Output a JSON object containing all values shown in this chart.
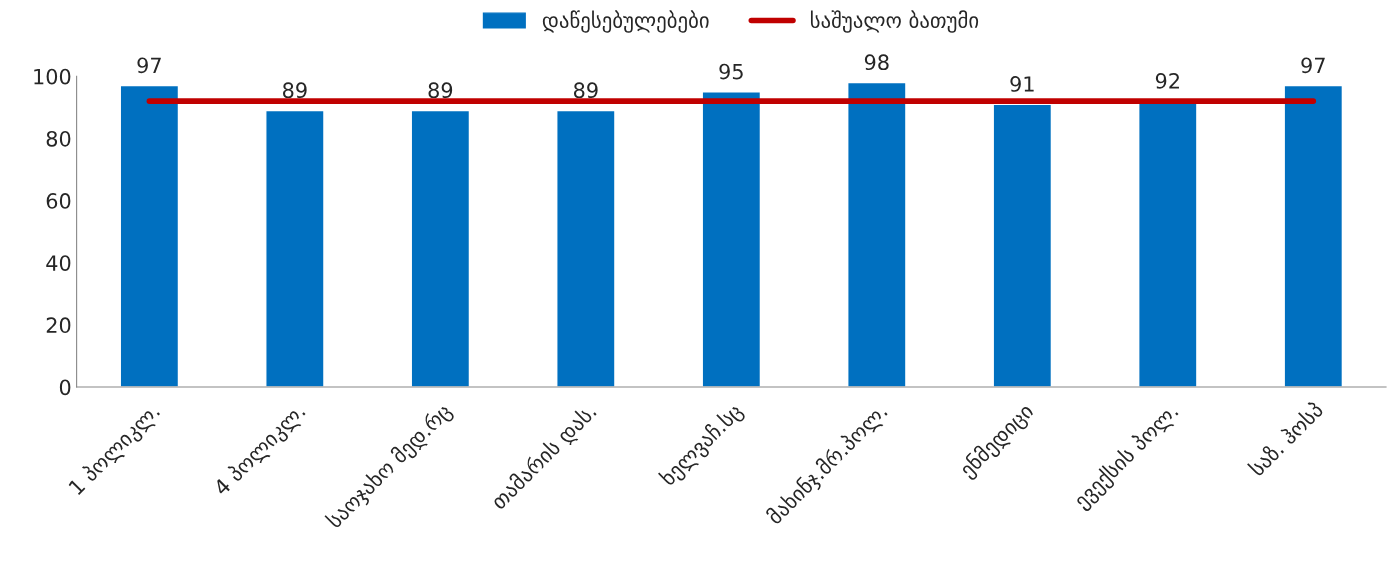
{
  "chart_data": {
    "type": "bar",
    "categories": [
      "1 პოლიკლ.",
      "4 პოლიკლ.",
      "საოჯახო მედ.რც",
      "თამარის დას.",
      "ხელვაჩ.სც",
      "მახინჯ.მრ.პოლ.",
      "ენმედიცი",
      "ევექსის პოლ.",
      "საზ. ჰოსპ"
    ],
    "series": [
      {
        "name": "დაწესებულებები",
        "color": "#0070c0",
        "values": [
          97,
          89,
          89,
          89,
          95,
          98,
          91,
          92,
          97
        ],
        "value_labels": [
          "97",
          "89",
          "89",
          "89",
          "95",
          "98",
          "91",
          "92",
          "97"
        ]
      },
      {
        "name": "საშუალო ბათუმი",
        "type": "line",
        "color": "#c00000",
        "values": [
          92,
          92,
          92,
          92,
          92,
          92,
          92,
          92,
          92
        ]
      }
    ],
    "ylim": [
      0,
      100
    ],
    "yticks": [
      0,
      20,
      40,
      60,
      80,
      100
    ],
    "grid": false,
    "legend": "top",
    "marker": "none"
  }
}
